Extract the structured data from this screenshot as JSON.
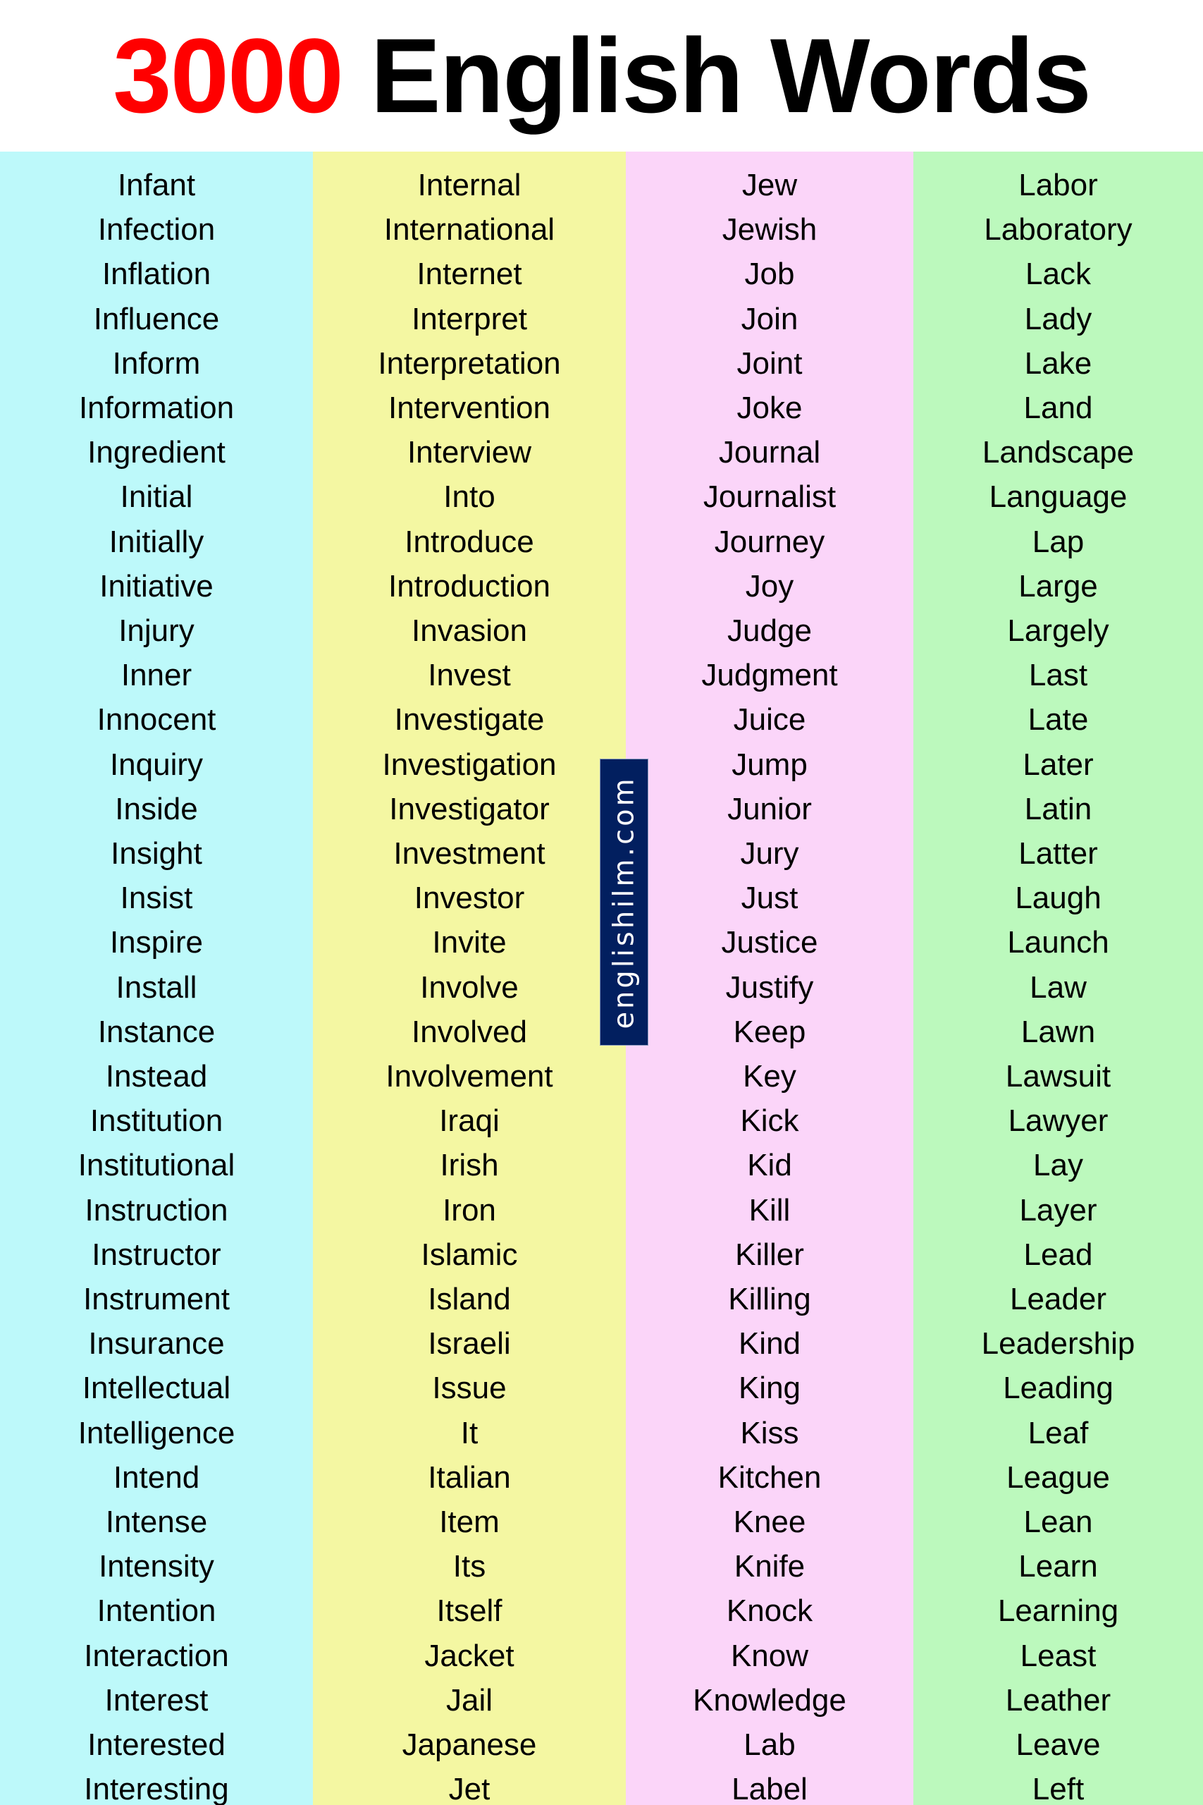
{
  "title": {
    "number": "3000",
    "text": "English Words"
  },
  "watermark": "englishilm.com",
  "colors": {
    "accent": "#ff0000",
    "col1": "#bdf9fa",
    "col2": "#f4f7a2",
    "col3": "#fbd5f9",
    "col4": "#bcf9bd",
    "badge": "#021f5f"
  },
  "columns": [
    [
      "Infant",
      "Infection",
      "Inflation",
      "Influence",
      "Inform",
      "Information",
      "Ingredient",
      "Initial",
      "Initially",
      "Initiative",
      "Injury",
      "Inner",
      "Innocent",
      "Inquiry",
      "Inside",
      "Insight",
      "Insist",
      "Inspire",
      "Install",
      "Instance",
      "Instead",
      "Institution",
      "Institutional",
      "Instruction",
      "Instructor",
      "Instrument",
      "Insurance",
      "Intellectual",
      "Intelligence",
      "Intend",
      "Intense",
      "Intensity",
      "Intention",
      "Interaction",
      "Interest",
      "Interested",
      "Interesting"
    ],
    [
      "Internal",
      "International",
      "Internet",
      "Interpret",
      "Interpretation",
      "Intervention",
      "Interview",
      "Into",
      "Introduce",
      "Introduction",
      "Invasion",
      "Invest",
      "Investigate",
      "Investigation",
      "Investigator",
      "Investment",
      "Investor",
      "Invite",
      "Involve",
      "Involved",
      "Involvement",
      "Iraqi",
      "Irish",
      "Iron",
      "Islamic",
      "Island",
      "Israeli",
      "Issue",
      "It",
      "Italian",
      "Item",
      "Its",
      "Itself",
      "Jacket",
      "Jail",
      "Japanese",
      "Jet"
    ],
    [
      "Jew",
      "Jewish",
      "Job",
      "Join",
      "Joint",
      "Joke",
      "Journal",
      "Journalist",
      "Journey",
      "Joy",
      "Judge",
      "Judgment",
      "Juice",
      "Jump",
      "Junior",
      "Jury",
      "Just",
      "Justice",
      "Justify",
      "Keep",
      "Key",
      "Kick",
      "Kid",
      "Kill",
      "Killer",
      "Killing",
      "Kind",
      "King",
      "Kiss",
      "Kitchen",
      "Knee",
      "Knife",
      "Knock",
      "Know",
      "Knowledge",
      "Lab",
      "Label"
    ],
    [
      "Labor",
      "Laboratory",
      "Lack",
      "Lady",
      "Lake",
      "Land",
      "Landscape",
      "Language",
      "Lap",
      "Large",
      "Largely",
      "Last",
      "Late",
      "Later",
      "Latin",
      "Latter",
      "Laugh",
      "Launch",
      "Law",
      "Lawn",
      "Lawsuit",
      "Lawyer",
      "Lay",
      "Layer",
      "Lead",
      "Leader",
      "Leadership",
      "Leading",
      "Leaf",
      "League",
      "Lean",
      "Learn",
      "Learning",
      "Least",
      "Leather",
      "Leave",
      "Left"
    ]
  ]
}
